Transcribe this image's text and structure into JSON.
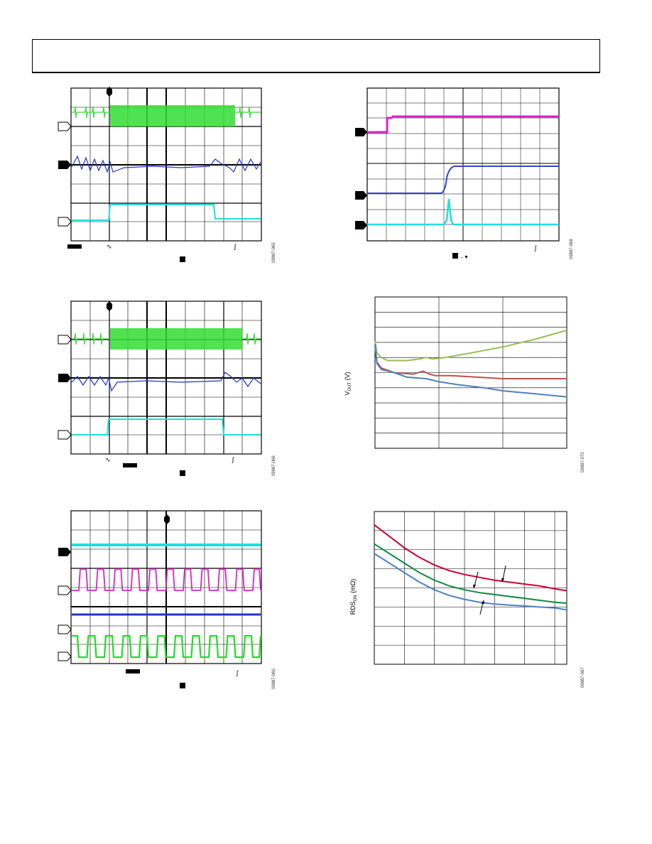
{
  "figures": {
    "f1": {
      "fig_id": "09887-065"
    },
    "f2": {
      "fig_id": "09887-068"
    },
    "f3": {
      "fig_id": "09887-066"
    },
    "f4": {
      "fig_id": "09887-070"
    },
    "f5": {
      "fig_id": "09887-060"
    },
    "f6": {
      "fig_id": "09887-067"
    }
  },
  "colors": {
    "green": "#33dd33",
    "blue": "#2233cc",
    "cyan": "#22dddd",
    "magenta": "#dd22cc",
    "olive": "#9bbb59",
    "red": "#c0504d",
    "steel": "#4f81bd",
    "crimson": "#cc0033",
    "dkgreen": "#118844"
  },
  "chart_data": [
    {
      "type": "line",
      "id": "vout-plot",
      "xlabel": "",
      "ylabel": "V_OUT (V)",
      "ylabel_main": "V",
      "ylabel_sub": "OUT",
      "ylabel_unit": " (V)",
      "x_divisions": 3,
      "y_divisions": 10,
      "xlim": [
        0,
        3
      ],
      "ylim": [
        0,
        10
      ],
      "grid": true,
      "series": [
        {
          "color": "olive",
          "x": [
            0,
            0.03,
            0.1,
            0.2,
            0.5,
            0.7,
            0.8,
            0.9,
            1.1,
            1.5,
            2,
            2.5,
            3
          ],
          "y": [
            7.1,
            6.3,
            6.0,
            5.8,
            5.8,
            5.9,
            6.0,
            5.9,
            6.0,
            6.3,
            6.7,
            7.2,
            7.8
          ]
        },
        {
          "color": "red",
          "x": [
            0,
            0.03,
            0.1,
            0.3,
            0.6,
            0.75,
            0.85,
            0.95,
            1.2,
            1.6,
            2,
            2.5,
            3
          ],
          "y": [
            6.8,
            5.7,
            5.3,
            5.0,
            4.9,
            5.1,
            4.9,
            4.8,
            4.8,
            4.7,
            4.6,
            4.6,
            4.6
          ]
        },
        {
          "color": "steel",
          "x": [
            0,
            0.03,
            0.1,
            0.3,
            0.5,
            0.8,
            0.9,
            1.0,
            1.3,
            1.7,
            2,
            2.5,
            3
          ],
          "y": [
            6.9,
            5.6,
            5.2,
            5.0,
            4.7,
            4.6,
            4.5,
            4.4,
            4.2,
            4.0,
            3.8,
            3.6,
            3.4
          ]
        }
      ]
    },
    {
      "type": "line",
      "id": "rdson-plot",
      "xlabel": "",
      "ylabel": "RDS_ON (mΩ)",
      "ylabel_main": "RDS",
      "ylabel_sub": "ON",
      "ylabel_unit": " (mΩ)",
      "x_divisions": 6.4,
      "y_divisions": 8,
      "xlim": [
        0,
        6.4
      ],
      "ylim": [
        0,
        8
      ],
      "grid": true,
      "series": [
        {
          "color": "crimson",
          "x": [
            0,
            0.5,
            1,
            1.5,
            2,
            2.5,
            3,
            3.5,
            4,
            4.5,
            5,
            5.5,
            6,
            6.4
          ],
          "y": [
            7.3,
            6.7,
            6.1,
            5.6,
            5.2,
            4.9,
            4.7,
            4.55,
            4.4,
            4.3,
            4.2,
            4.1,
            3.95,
            3.85
          ]
        },
        {
          "color": "dkgreen",
          "x": [
            0,
            0.5,
            1,
            1.5,
            2,
            2.5,
            3,
            3.5,
            4,
            4.5,
            5,
            5.5,
            6,
            6.4
          ],
          "y": [
            6.3,
            5.8,
            5.3,
            4.8,
            4.4,
            4.1,
            3.9,
            3.75,
            3.65,
            3.55,
            3.45,
            3.35,
            3.25,
            3.2
          ]
        },
        {
          "color": "steel",
          "x": [
            0,
            0.5,
            1,
            1.5,
            2,
            2.5,
            3,
            3.5,
            4,
            4.5,
            5,
            5.5,
            6,
            6.4
          ],
          "y": [
            5.8,
            5.3,
            4.8,
            4.3,
            3.9,
            3.6,
            3.4,
            3.25,
            3.15,
            3.1,
            3.05,
            3.0,
            2.95,
            2.85
          ]
        }
      ]
    }
  ]
}
